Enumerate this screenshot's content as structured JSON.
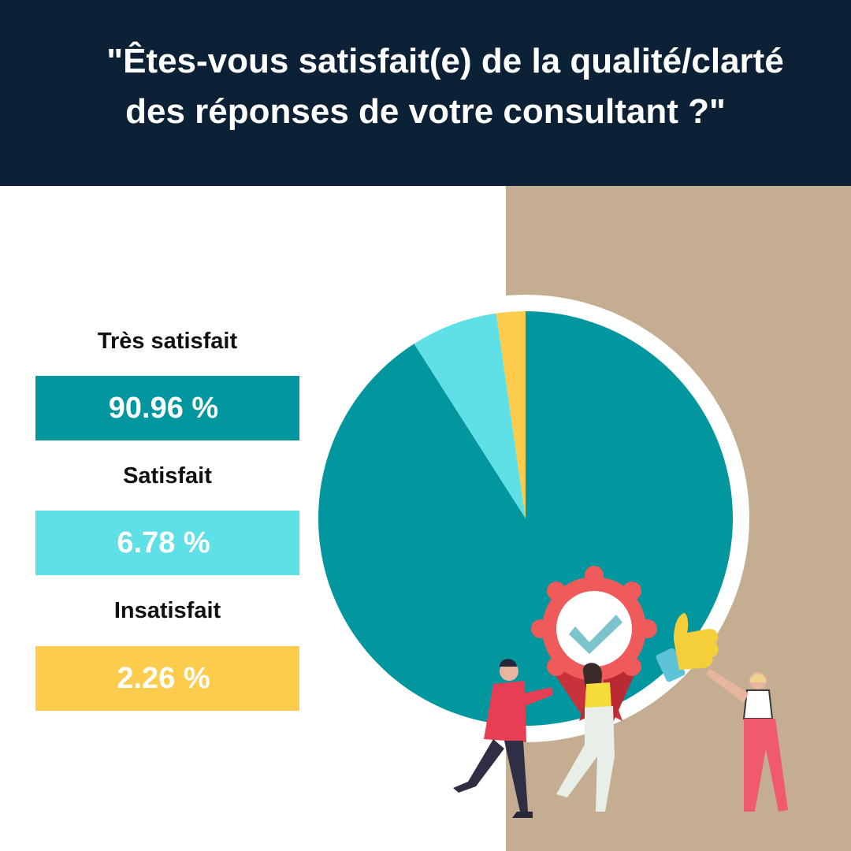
{
  "header": {
    "title_line1": "\"Êtes-vous satisfait(e) de la qualité/clarté",
    "title_line2": "des réponses de votre consultant ?\""
  },
  "colors": {
    "header_bg": "#0c2036",
    "tan": "#c4ad91",
    "tres_satisfait": "#02969f",
    "satisfait": "#5ee0e6",
    "insatisfait": "#fdcc4c"
  },
  "legend": [
    {
      "label": "Très satisfait",
      "value_text": "90.96 %"
    },
    {
      "label": "Satisfait",
      "value_text": "6.78 %"
    },
    {
      "label": "Insatisfait",
      "value_text": "2.26 %"
    }
  ],
  "chart_data": {
    "type": "pie",
    "categories": [
      "Très satisfait",
      "Satisfait",
      "Insatisfait"
    ],
    "values": [
      90.96,
      6.78,
      2.26
    ],
    "colors": [
      "#02969f",
      "#5ee0e6",
      "#fdcc4c"
    ],
    "unit": "%",
    "title": "\"Êtes-vous satisfait(e) de la qualité/clarté des réponses de votre consultant ?\"",
    "legend_position": "left"
  }
}
